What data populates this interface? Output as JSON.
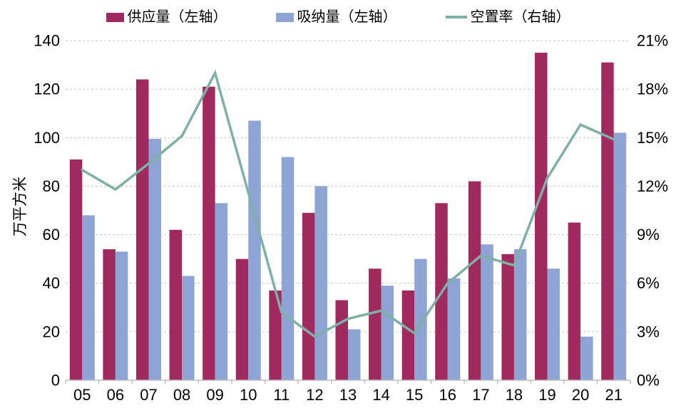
{
  "legend": [
    {
      "label": "供应量（左轴）",
      "type": "bar",
      "color": "#A02A5E"
    },
    {
      "label": "吸纳量（左轴）",
      "type": "bar",
      "color": "#8EA4D4"
    },
    {
      "label": "空置率（右轴）",
      "type": "line",
      "color": "#7FB0A5"
    }
  ],
  "chart_data": {
    "type": "combo",
    "categories": [
      "05",
      "06",
      "07",
      "08",
      "09",
      "10",
      "11",
      "12",
      "13",
      "14",
      "15",
      "16",
      "17",
      "18",
      "19",
      "20",
      "21"
    ],
    "series": [
      {
        "name": "供应量（左轴）",
        "type": "bar",
        "axis": "left",
        "color": "#A02A5E",
        "values": [
          91,
          54,
          124,
          62,
          121,
          50,
          37,
          69,
          33,
          46,
          37,
          73,
          82,
          52,
          135,
          65,
          131
        ]
      },
      {
        "name": "吸纳量（左轴）",
        "type": "bar",
        "axis": "left",
        "color": "#8EA4D4",
        "values": [
          68,
          53,
          99.5,
          43,
          73,
          107,
          92,
          80,
          21,
          39,
          50,
          42,
          56,
          54,
          46,
          18,
          102
        ]
      },
      {
        "name": "空置率（右轴）",
        "type": "line",
        "axis": "right",
        "color": "#7FB0A5",
        "values": [
          13.0,
          11.8,
          13.4,
          15.1,
          19.0,
          11.6,
          4.2,
          2.7,
          3.8,
          4.3,
          2.9,
          6.0,
          7.7,
          7.1,
          12.5,
          15.8,
          14.9
        ]
      }
    ],
    "left_axis": {
      "label": "万平方米",
      "min": 0,
      "max": 140,
      "step": 20,
      "ticks": [
        "0",
        "20",
        "40",
        "60",
        "80",
        "100",
        "120",
        "140"
      ]
    },
    "right_axis": {
      "min": 0,
      "max": 21,
      "step": 3,
      "ticks": [
        "0%",
        "3%",
        "6%",
        "9%",
        "12%",
        "15%",
        "18%",
        "21%"
      ]
    },
    "grid": true,
    "grid_color": "#C6C6C6",
    "axis_line_color": "#BFBFBF",
    "legend_position": "top"
  }
}
